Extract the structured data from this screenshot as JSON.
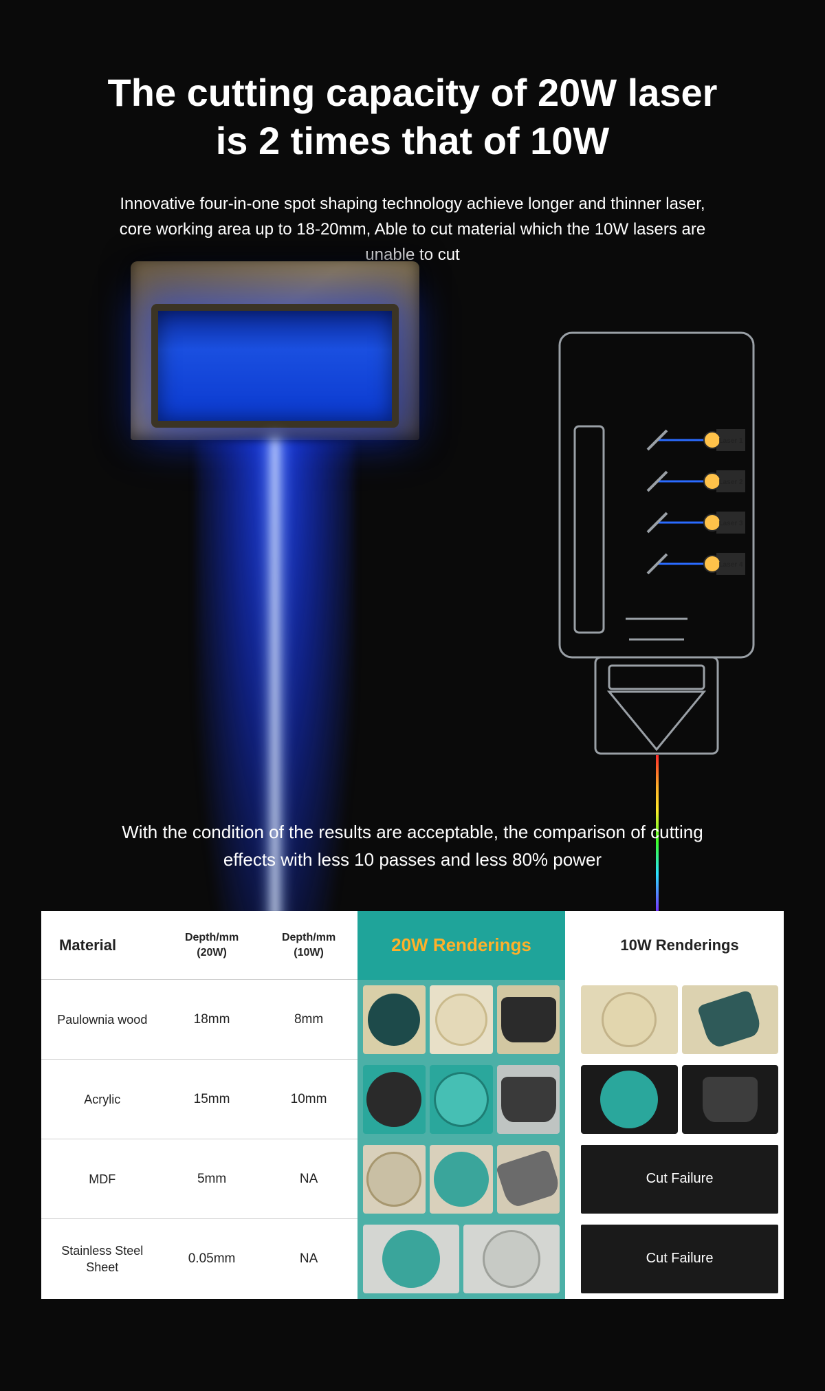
{
  "hero": {
    "title": "The cutting capacity of 20W laser is 2 times that of 10W",
    "subtitle": "Innovative four-in-one spot shaping technology achieve longer and thinner laser, core working area up to 18-20mm, Able to cut material which the 10W lasers are unable to cut"
  },
  "diagram": {
    "outline_color": "#9aa0a6",
    "laser_node_color": "#ffc24a",
    "laser_node_stroke": "#2a2a2a",
    "mirror_color": "#9aa0a6",
    "slit_color": "#9aa0a6",
    "beam_gradient": [
      "#ff2a2a",
      "#ffb02a",
      "#ffe92a",
      "#3cff2a",
      "#2ae2ff",
      "#7a2aff"
    ],
    "beam_blue": "#2a6bff",
    "labels": [
      "Laser 1",
      "Laser 2",
      "Laser 3",
      "Laser 4"
    ]
  },
  "condition_note": "With the condition of the results are acceptable, the comparison of cutting effects with less 10 passes and less 80% power",
  "table": {
    "headers": {
      "material": "Material",
      "depth20": "Depth/mm (20W)",
      "depth10": "Depth/mm (10W)",
      "render20": "20W Renderings",
      "render10": "10W Renderings"
    },
    "header_style": {
      "r20_bg": "#1fa49a",
      "r20_text": "#ffb02a",
      "cell20_bg": "#4cb0a7"
    },
    "failure_label": "Cut Failure",
    "rows": [
      {
        "material": "Paulownia wood",
        "d20": "18mm",
        "d10": "8mm",
        "r20": [
          {
            "bg": "#d9cfa8",
            "disc": "circle",
            "disc_fill": "#1d4a4a",
            "disc_r": 38
          },
          {
            "bg": "#e8e0c8",
            "disc": "circle",
            "disc_fill": "#e4d9b8",
            "disc_r": 38,
            "disc_stroke": "#caba8c"
          },
          {
            "bg": "#d2c7a2",
            "disc": "cyl",
            "disc_fill": "#2b2b2b"
          }
        ],
        "r10": [
          {
            "bg": "#e2d8b6",
            "disc": "circle",
            "disc_fill": "#e2d6ae",
            "disc_r": 40,
            "disc_stroke": "#c3b38a"
          },
          {
            "bg": "#dcd2b0",
            "disc": "cyl",
            "disc_fill": "#2f5a59",
            "tilt": true
          }
        ]
      },
      {
        "material": "Acrylic",
        "d20": "15mm",
        "d10": "10mm",
        "r20": [
          {
            "bg": "#2aa79c",
            "disc": "circle",
            "disc_fill": "#2a2a2a",
            "disc_r": 40
          },
          {
            "bg": "#2aa79c",
            "disc": "circle",
            "disc_fill": "#46bfb4",
            "disc_r": 40,
            "disc_stroke": "#1d7d74"
          },
          {
            "bg": "#bfc4c2",
            "disc": "cyl",
            "disc_fill": "#3a3a3a"
          }
        ],
        "r10": [
          {
            "bg": "#1a1a1a",
            "disc": "circle",
            "disc_fill": "#2aa79c",
            "disc_r": 42
          },
          {
            "bg": "#1a1a1a",
            "disc": "cyl",
            "disc_fill": "#3d3d3d"
          }
        ]
      },
      {
        "material": "MDF",
        "d20": "5mm",
        "d10": "NA",
        "r20": [
          {
            "bg": "#d9d0bb",
            "disc": "circle",
            "disc_fill": "#c9bfa4",
            "disc_r": 40,
            "disc_stroke": "#a7976f"
          },
          {
            "bg": "#d9d0bb",
            "disc": "circle",
            "disc_fill": "#3aa59b",
            "disc_r": 40
          },
          {
            "bg": "#d4cbb5",
            "disc": "cyl",
            "disc_fill": "#6b6b6b",
            "tilt": true
          }
        ],
        "r10": "failure"
      },
      {
        "material": "Stainless Steel Sheet",
        "d20": "0.05mm",
        "d10": "NA",
        "r20": [
          {
            "bg": "#d4d6d2",
            "disc": "circle",
            "disc_fill": "#3aa59b",
            "disc_r": 42
          },
          {
            "bg": "#d4d6d2",
            "disc": "circle",
            "disc_fill": "#c7cac5",
            "disc_r": 42,
            "disc_stroke": "#9ea19b"
          }
        ],
        "r10": "failure"
      }
    ]
  }
}
